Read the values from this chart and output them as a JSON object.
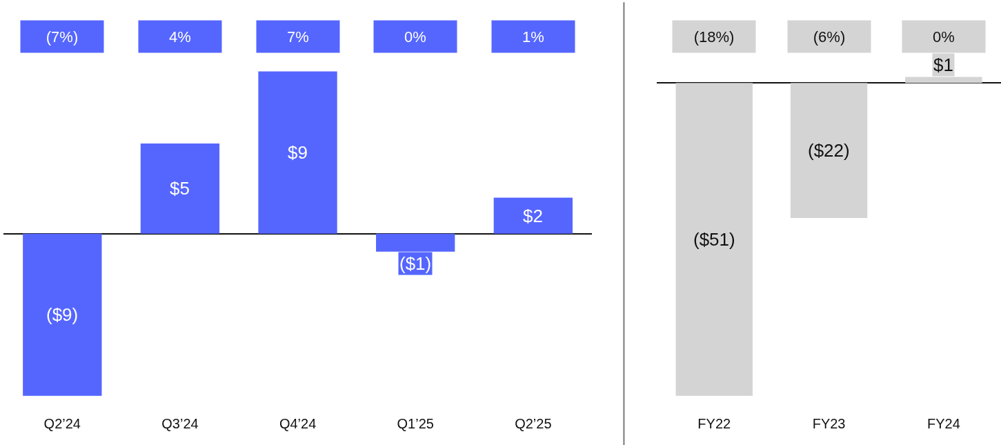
{
  "chart_data": [
    {
      "type": "bar",
      "categories": [
        "Q2’24",
        "Q3’24",
        "Q4’24",
        "Q1’25",
        "Q2’25"
      ],
      "series": [
        {
          "color": "#5566ff",
          "values": [
            -9,
            5,
            9,
            -1,
            2
          ],
          "value_labels": [
            "($9)",
            "$5",
            "$9",
            "($1)",
            "$2"
          ]
        }
      ],
      "annotations": [
        "(7%)",
        "4%",
        "7%",
        "0%",
        "1%"
      ]
    },
    {
      "type": "bar",
      "categories": [
        "FY22",
        "FY23",
        "FY24"
      ],
      "series": [
        {
          "color": "#d4d4d4",
          "values": [
            -51,
            -22,
            1
          ],
          "value_labels": [
            "($51)",
            "($22)",
            "$1"
          ]
        }
      ],
      "annotations": [
        "(18%)",
        "(6%)",
        "0%"
      ]
    }
  ]
}
